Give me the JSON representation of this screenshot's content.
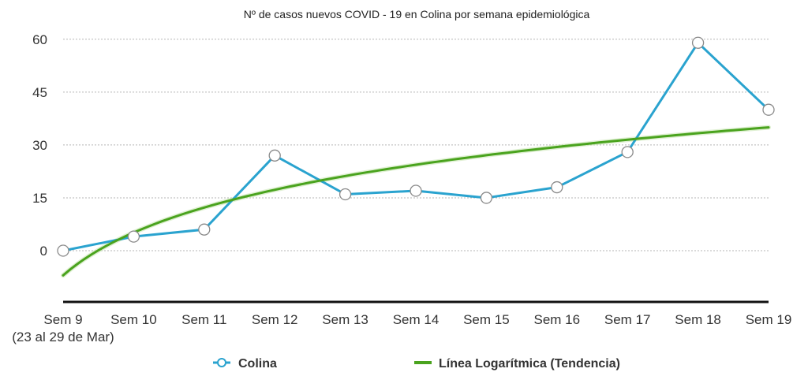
{
  "chart_data": {
    "type": "line",
    "title": "Nº de casos nuevos COVID - 19 en Colina por semana epidemiológica",
    "categories": [
      "Sem 9",
      "Sem 10",
      "Sem 11",
      "Sem 12",
      "Sem 13",
      "Sem 14",
      "Sem 15",
      "Sem 16",
      "Sem 17",
      "Sem 18",
      "Sem 19"
    ],
    "first_category_note": "(23 al 29 de Mar)",
    "yticks": [
      0,
      15,
      30,
      45,
      60
    ],
    "ylim": [
      -15,
      65
    ],
    "grid": true,
    "legend_position": "bottom",
    "series": [
      {
        "name": "Colina",
        "color": "#2aa3cf",
        "marker": "hollow-circle",
        "values": [
          0,
          4,
          6,
          27,
          16,
          17,
          15,
          18,
          28,
          59,
          40
        ]
      },
      {
        "name": "Línea Logarítmica (Tendencia)",
        "color": "#4aa31e",
        "trendline": "logarithmic",
        "values": [
          -7,
          5.5,
          12.5,
          17.5,
          21.3,
          24.5,
          27.1,
          29.5,
          31.5,
          33.3,
          35
        ]
      }
    ]
  }
}
